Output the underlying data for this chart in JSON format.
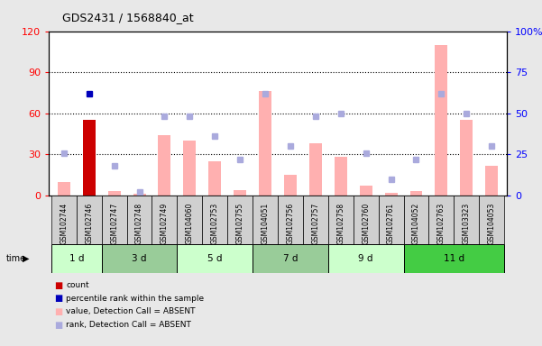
{
  "title": "GDS2431 / 1568840_at",
  "samples": [
    "GSM102744",
    "GSM102746",
    "GSM102747",
    "GSM102748",
    "GSM102749",
    "GSM104060",
    "GSM102753",
    "GSM102755",
    "GSM104051",
    "GSM102756",
    "GSM102757",
    "GSM102758",
    "GSM102760",
    "GSM102761",
    "GSM104052",
    "GSM102763",
    "GSM103323",
    "GSM104053"
  ],
  "time_groups": [
    {
      "label": "1 d",
      "start": 0,
      "end": 1,
      "color": "#ccffcc"
    },
    {
      "label": "3 d",
      "start": 2,
      "end": 4,
      "color": "#99dd99"
    },
    {
      "label": "5 d",
      "start": 5,
      "end": 7,
      "color": "#ccffcc"
    },
    {
      "label": "7 d",
      "start": 8,
      "end": 10,
      "color": "#99dd99"
    },
    {
      "label": "9 d",
      "start": 11,
      "end": 13,
      "color": "#ccffcc"
    },
    {
      "label": "11 d",
      "start": 14,
      "end": 17,
      "color": "#44dd44"
    }
  ],
  "value_bars": [
    10,
    55,
    3,
    1,
    44,
    40,
    25,
    4,
    76,
    15,
    38,
    28,
    7,
    2,
    3,
    110,
    55,
    22
  ],
  "rank_dots": [
    26,
    62,
    18,
    2,
    48,
    48,
    36,
    22,
    62,
    30,
    48,
    50,
    26,
    10,
    22,
    62,
    50,
    30
  ],
  "count_bar_index": 1,
  "left_ylim": [
    0,
    120
  ],
  "right_ylim": [
    0,
    100
  ],
  "left_yticks": [
    0,
    30,
    60,
    90,
    120
  ],
  "right_yticks": [
    0,
    25,
    50,
    75,
    100
  ],
  "right_yticklabels": [
    "0",
    "25",
    "50",
    "75",
    "100%"
  ],
  "bar_color_pink": "#ffb0b0",
  "bar_color_red": "#cc0000",
  "dot_color_blue": "#aaaadd",
  "dot_color_darkblue": "#0000bb",
  "bg_color": "#e8e8e8",
  "plot_bg": "#ffffff",
  "legend_items": [
    {
      "color": "#cc0000",
      "label": "count"
    },
    {
      "color": "#0000bb",
      "label": "percentile rank within the sample"
    },
    {
      "color": "#ffb0b0",
      "label": "value, Detection Call = ABSENT"
    },
    {
      "color": "#aaaadd",
      "label": "rank, Detection Call = ABSENT"
    }
  ]
}
